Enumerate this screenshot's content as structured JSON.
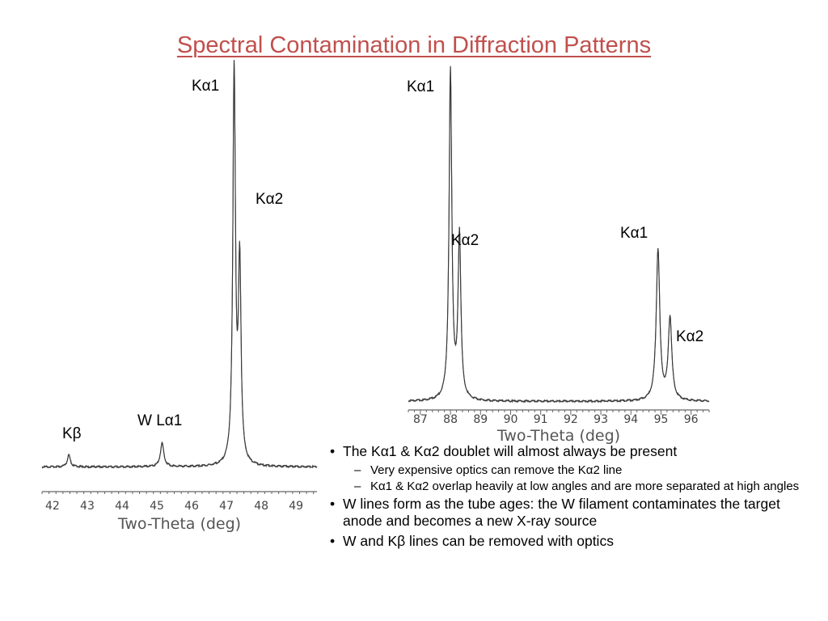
{
  "title": "Spectral Contamination in Diffraction Patterns",
  "colors": {
    "title": "#c0504d",
    "trace": "#333333",
    "axis": "#666666"
  },
  "chart_data": [
    {
      "type": "line",
      "xlabel": "Two-Theta (deg)",
      "ylabel": "",
      "xlim": [
        41.7,
        49.6
      ],
      "ylim": [
        0,
        100
      ],
      "xticks": [
        42,
        43,
        44,
        45,
        46,
        47,
        48,
        49
      ],
      "grid": false,
      "peaks": [
        {
          "label": "Kβ",
          "x": 42.47,
          "height": 3
        },
        {
          "label": "W Lα1",
          "x": 45.15,
          "height": 6
        },
        {
          "label": "Kα1",
          "x": 47.22,
          "height": 100
        },
        {
          "label": "Kα2",
          "x": 47.38,
          "height": 50
        }
      ]
    },
    {
      "type": "line",
      "xlabel": "Two-Theta (deg)",
      "ylabel": "",
      "xlim": [
        86.6,
        96.6
      ],
      "ylim": [
        0,
        100
      ],
      "xticks": [
        87,
        88,
        89,
        90,
        91,
        92,
        93,
        94,
        95,
        96
      ],
      "grid": false,
      "peaks": [
        {
          "label": "Kα1",
          "x": 88.0,
          "height": 100
        },
        {
          "label": "Kα2",
          "x": 88.3,
          "height": 50
        },
        {
          "label": "Kα1",
          "x": 94.9,
          "height": 46
        },
        {
          "label": "Kα2",
          "x": 95.3,
          "height": 25
        }
      ]
    }
  ],
  "bullets": [
    {
      "text": "The Kα1 & Kα2 doublet will almost always be present",
      "sub": [
        "Very expensive optics can remove the Kα2 line",
        "Kα1 & Kα2 overlap heavily at low angles and are more separated at high angles"
      ]
    },
    {
      "text": "W lines form as the tube ages: the W filament contaminates the target anode and becomes a new X-ray source",
      "sub": []
    },
    {
      "text": "W and Kβ lines can be removed with optics",
      "sub": []
    }
  ],
  "bullet_marker": "•",
  "sub_marker": "–"
}
